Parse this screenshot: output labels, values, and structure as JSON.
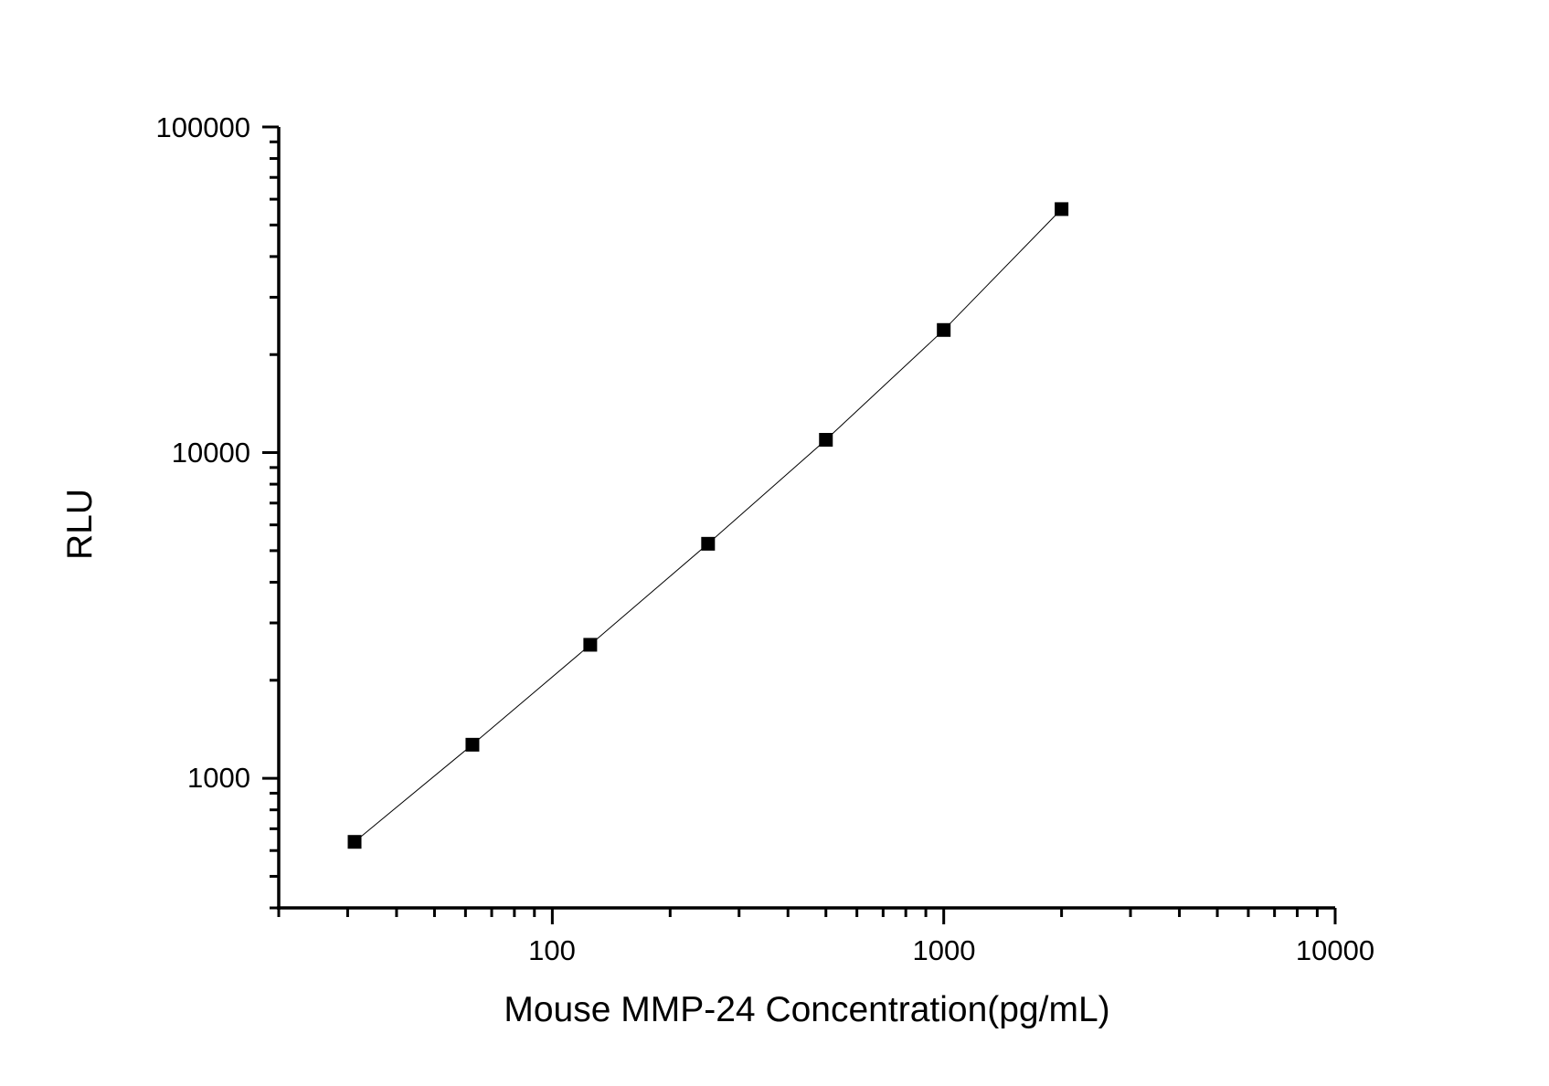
{
  "chart_data": {
    "type": "line",
    "title": "",
    "xlabel": "Mouse MMP-24 Concentration(pg/mL)",
    "ylabel": "RLU",
    "x_scale": "log",
    "y_scale": "log",
    "xlim": [
      20,
      10000
    ],
    "ylim": [
      400,
      100000
    ],
    "x_ticks": [
      100,
      1000,
      10000
    ],
    "x_tick_labels": [
      "100",
      "1000",
      "10000"
    ],
    "y_ticks": [
      1000,
      10000,
      100000
    ],
    "y_tick_labels": [
      "1000",
      "10000",
      "100000"
    ],
    "grid": false,
    "legend": "none",
    "marker": "square",
    "colors": {
      "marker": "#000000",
      "line": "#000000"
    },
    "series": [
      {
        "x": [
          31.25,
          62.5,
          125,
          250,
          500,
          1000,
          2000
        ],
        "y": [
          638,
          1268,
          2570,
          5250,
          10950,
          23800,
          55950
        ]
      }
    ]
  }
}
